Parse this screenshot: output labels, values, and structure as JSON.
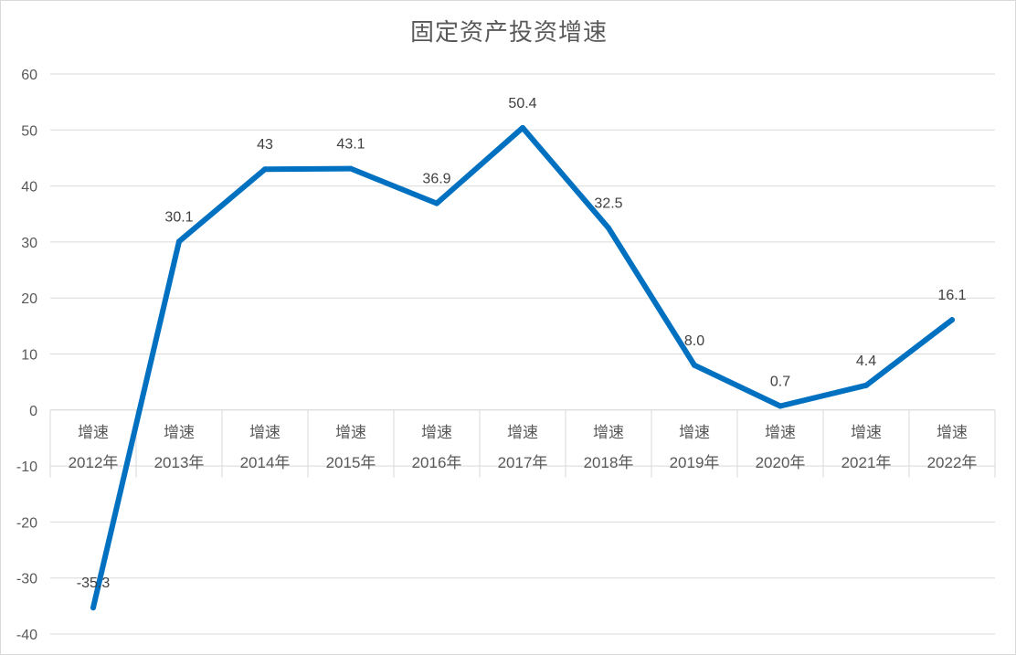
{
  "chart_data": {
    "type": "line",
    "title": "固定资产投资增速",
    "category_line1": "增速",
    "categories": [
      "2012年",
      "2013年",
      "2014年",
      "2015年",
      "2016年",
      "2017年",
      "2018年",
      "2019年",
      "2020年",
      "2021年",
      "2022年"
    ],
    "series": [
      {
        "values": [
          -35.3,
          30.1,
          43,
          43.1,
          36.9,
          50.4,
          32.5,
          8.0,
          0.7,
          4.4,
          16.1
        ],
        "data_labels": [
          "-35.3",
          "30.1",
          "43",
          "43.1",
          "36.9",
          "50.4",
          "32.5",
          "8.0",
          "0.7",
          "4.4",
          "16.1"
        ],
        "color": "#0070c0"
      }
    ],
    "y_ticks": [
      "60",
      "50",
      "40",
      "30",
      "20",
      "10",
      "0",
      "-10",
      "-20",
      "-30",
      "-40"
    ],
    "ylim": [
      -40,
      60
    ],
    "grid": true,
    "legend": "none",
    "colors": {
      "line": "#0070c0",
      "grid": "#d9d9d9",
      "text": "#595959"
    }
  }
}
